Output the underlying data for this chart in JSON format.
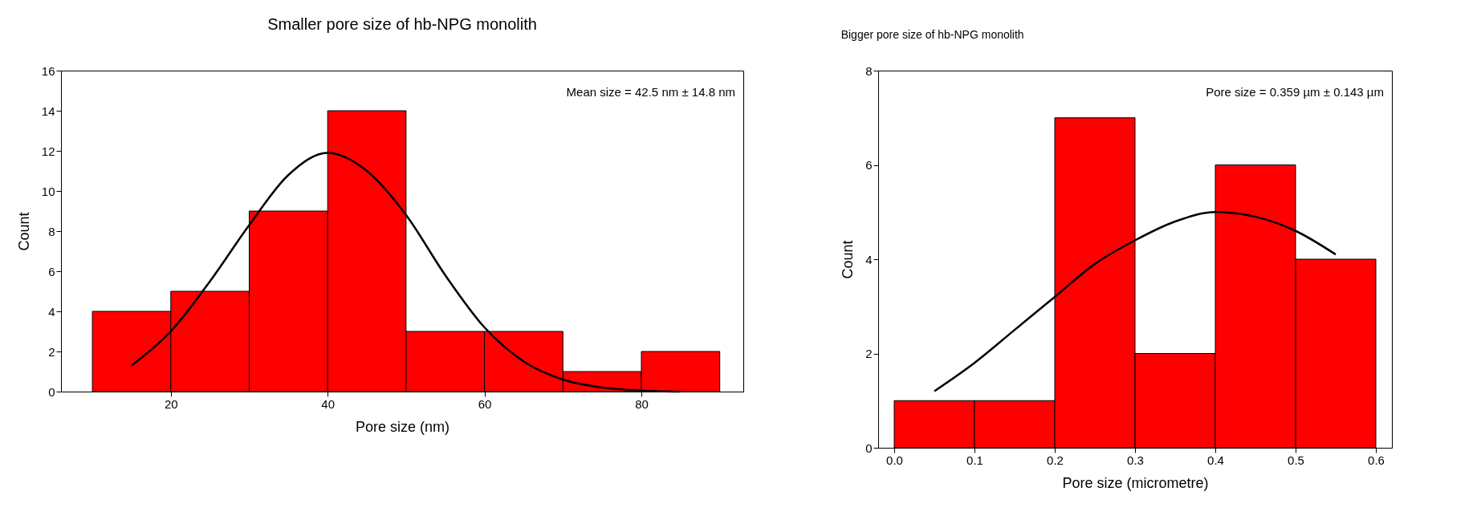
{
  "chart_data": [
    {
      "type": "histogram",
      "title": "Smaller pore size of hb-NPG monolith",
      "xlabel": "Pore size (nm)",
      "ylabel": "Count",
      "annotations": [
        "Mean size = 42.5 nm  ±  14.8 nm"
      ],
      "bins": [
        10,
        20,
        30,
        40,
        50,
        60,
        70,
        80,
        90
      ],
      "xlim": [
        6,
        93
      ],
      "xticks": [
        20,
        40,
        60,
        80
      ],
      "ylim": [
        0,
        16
      ],
      "yticks": [
        0,
        2,
        4,
        6,
        8,
        10,
        12,
        14,
        16
      ],
      "series": [
        {
          "type": "histogram",
          "color": "#ff0000",
          "values": [
            4,
            5,
            9,
            14,
            3,
            3,
            1,
            2
          ]
        },
        {
          "type": "line",
          "color": "#000000",
          "x": [
            15,
            20,
            25,
            30,
            35,
            40,
            45,
            50,
            55,
            60,
            65,
            70,
            75,
            80,
            85
          ],
          "values": [
            1.3,
            3,
            5.5,
            8.3,
            10.8,
            11.9,
            11,
            8.8,
            5.8,
            3.2,
            1.5,
            0.6,
            0.2,
            0.05,
            0
          ]
        }
      ]
    },
    {
      "type": "histogram",
      "title": "Bigger pore size of hb-NPG monolith",
      "xlabel": "Pore size (micrometre)",
      "ylabel": "Count",
      "annotations": [
        "Pore size = 0.359 µm ± 0.143  µm"
      ],
      "bins": [
        0,
        0.1,
        0.2,
        0.3,
        0.4,
        0.5,
        0.6
      ],
      "xlim": [
        -0.02,
        0.62
      ],
      "xticks": [
        {
          "value": 0,
          "label": "0.0"
        },
        {
          "value": 0.1,
          "label": "0.1"
        },
        {
          "value": 0.2,
          "label": "0.2"
        },
        {
          "value": 0.3,
          "label": "0.3"
        },
        {
          "value": 0.4,
          "label": "0.4"
        },
        {
          "value": 0.5,
          "label": "0.5"
        },
        {
          "value": 0.6,
          "label": "0.6"
        }
      ],
      "ylim": [
        0,
        8
      ],
      "yticks": [
        0,
        2,
        4,
        6,
        8
      ],
      "series": [
        {
          "type": "histogram",
          "color": "#ff0000",
          "values": [
            1,
            1,
            7,
            2,
            6,
            4
          ]
        },
        {
          "type": "line",
          "color": "#000000",
          "x": [
            0.05,
            0.1,
            0.15,
            0.2,
            0.25,
            0.3,
            0.35,
            0.4,
            0.45,
            0.5,
            0.55
          ],
          "values": [
            1.2,
            1.8,
            2.5,
            3.2,
            3.9,
            4.4,
            4.8,
            5,
            4.9,
            4.6,
            4.1
          ]
        }
      ]
    }
  ]
}
